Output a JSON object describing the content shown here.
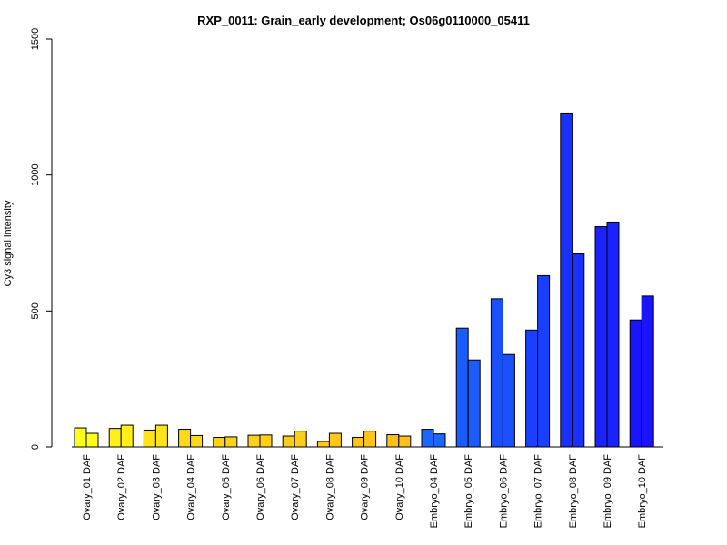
{
  "chart_data": {
    "type": "bar",
    "title": "RXP_0011: Grain_early development; Os06g0110000_05411",
    "xlabel": "",
    "ylabel": "Cy3 signal intensity",
    "ylim": [
      0,
      1500
    ],
    "yticks": [
      0,
      500,
      1000,
      1500
    ],
    "grid": false,
    "categories": [
      "Ovary_01 DAF",
      "Ovary_02 DAF",
      "Ovary_03 DAF",
      "Ovary_04 DAF",
      "Ovary_05 DAF",
      "Ovary_06 DAF",
      "Ovary_07 DAF",
      "Ovary_08 DAF",
      "Ovary_09 DAF",
      "Ovary_10 DAF",
      "Embryo_04 DAF",
      "Embryo_05 DAF",
      "Embryo_06 DAF",
      "Embryo_07 DAF",
      "Embryo_08 DAF",
      "Embryo_09 DAF",
      "Embryo_10 DAF"
    ],
    "colors": [
      "#ffff1a",
      "#fff01a",
      "#ffe41a",
      "#ffd81a",
      "#ffd21a",
      "#ffd01a",
      "#ffcc1a",
      "#ffc81a",
      "#ffc41a",
      "#ffc01a",
      "#1a66ff",
      "#1a5cff",
      "#1a50ff",
      "#1a40ff",
      "#1a30ff",
      "#1a22ff",
      "#1a14ff"
    ],
    "series": [
      {
        "values": [
          70,
          68,
          62,
          65,
          35,
          43,
          40,
          20,
          35,
          45,
          65,
          437,
          545,
          430,
          1228,
          810,
          467
        ]
      },
      {
        "values": [
          50,
          80,
          80,
          42,
          37,
          44,
          58,
          50,
          58,
          40,
          48,
          320,
          340,
          630,
          710,
          827,
          555
        ]
      }
    ]
  }
}
